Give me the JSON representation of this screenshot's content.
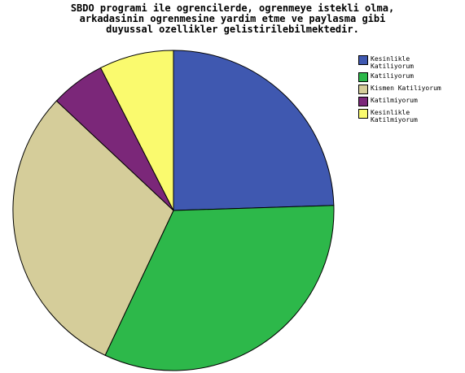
{
  "chart_data": {
    "type": "pie",
    "title_lines": [
      "SBDO programi ile ogrencilerde, ogrenmeye istekli olma,",
      "arkadasinin ogrenmesine yardim etme ve paylasma gibi",
      "duyussal ozellikler gelistirilebilmektedir."
    ],
    "categories": [
      "Kesinlikle\nKatiliyorum",
      "Katiliyorum",
      "Kismen Katiliyorum",
      "Katilmiyorum",
      "Kesinlikle\nKatilmiyorum"
    ],
    "values": [
      24.5,
      32.5,
      30.0,
      5.5,
      7.5
    ],
    "colors": [
      "#3f58b0",
      "#2db84a",
      "#d5cd9a",
      "#7b2779",
      "#fafa6e"
    ],
    "legend_position": "right"
  }
}
